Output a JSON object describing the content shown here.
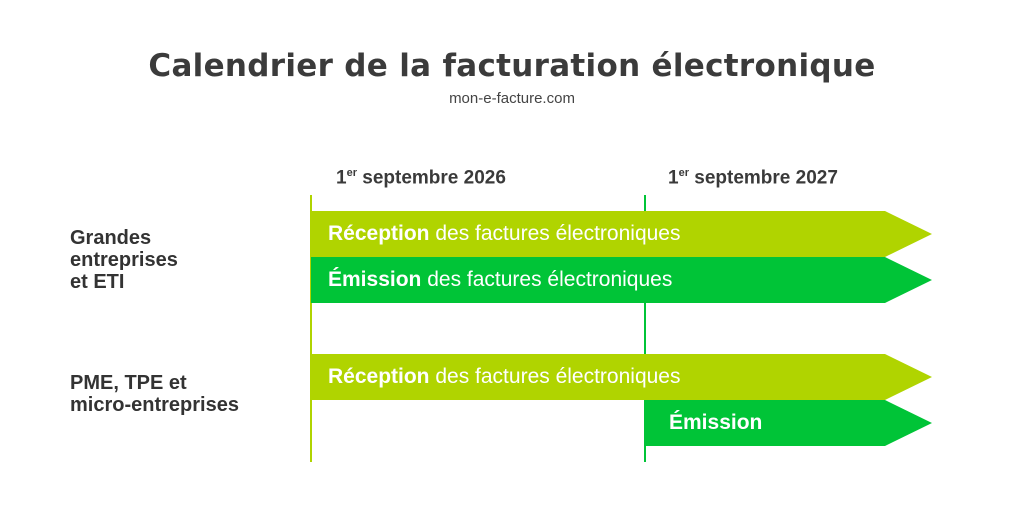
{
  "title": "Calendrier de la facturation électronique",
  "subtitle": "mon-e-facture.com",
  "dates": [
    {
      "prefix": "1",
      "sup": "er",
      "rest": " septembre 2026"
    },
    {
      "prefix": "1",
      "sup": "er",
      "rest": " septembre 2027"
    }
  ],
  "groups": [
    {
      "label_lines": [
        "Grandes",
        "entreprises",
        "et ETI"
      ],
      "bars": [
        {
          "bold": "Réception",
          "text": " des factures électroniques"
        },
        {
          "bold": "Émission",
          "text": " des factures électroniques"
        }
      ]
    },
    {
      "label_lines": [
        "PME, TPE et",
        "micro-entreprises"
      ],
      "bars": [
        {
          "bold": "Réception",
          "text": " des factures électroniques"
        },
        {
          "bold": "Émission",
          "text": ""
        }
      ]
    }
  ],
  "colors": {
    "reception": "#b0d400",
    "emission": "#00c437",
    "text": "#3a3a3a"
  }
}
